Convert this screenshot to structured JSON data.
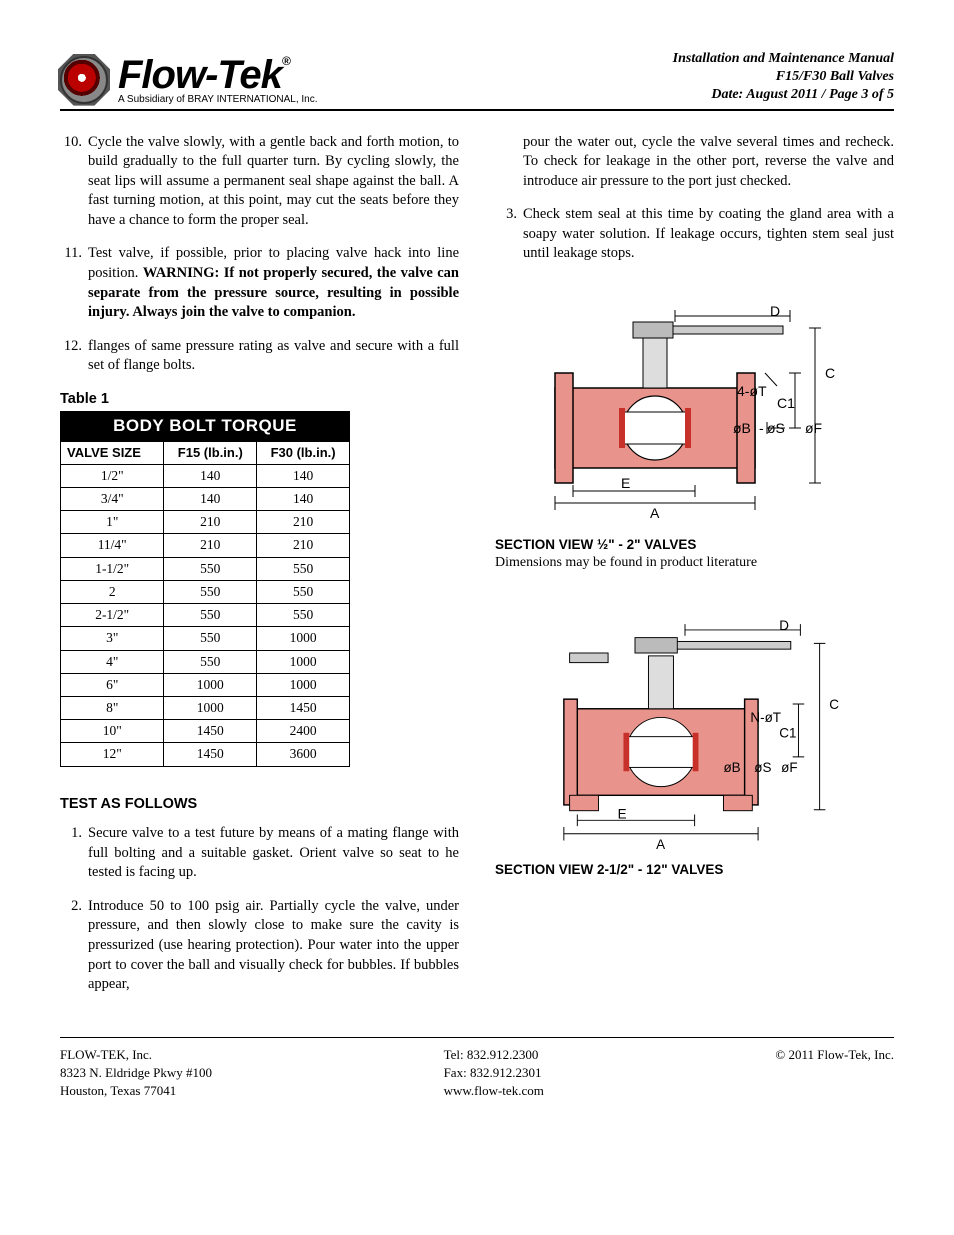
{
  "logo": {
    "name": "Flow-Tek",
    "sub": "A Subsidiary of BRAY INTERNATIONAL, Inc.",
    "reg": "®"
  },
  "header": {
    "line1": "Installation and Maintenance Manual",
    "line2": "F15/F30 Ball Valves",
    "line3": "Date: August 2011 / Page 3 of 5"
  },
  "left_items": [
    {
      "num": "10.",
      "text": "Cycle the valve slowly, with a gentle back and forth motion, to build gradually to the full quarter turn. By cycling slowly, the seat lips will assume a permanent seal shape against the ball. A fast turning motion, at this point, may cut the seats before they have a chance to form the proper seal."
    },
    {
      "num": "11.",
      "text": "Test valve, if possible, prior to placing valve hack into line position. ",
      "bold": "WARNING: If not properly secured, the valve can separate from the pressure source, resulting in possible injury. Always join the valve to companion."
    },
    {
      "num": "12.",
      "text": "flanges of same pressure rating as valve and secure with a full set of flange bolts."
    }
  ],
  "table": {
    "label": "Table 1",
    "title": "BODY BOLT TORQUE",
    "columns": [
      "VALVE SIZE",
      "F15 (lb.in.)",
      "F30 (lb.in.)"
    ],
    "rows": [
      [
        "1/2\"",
        "140",
        "140"
      ],
      [
        "3/4\"",
        "140",
        "140"
      ],
      [
        "1\"",
        "210",
        "210"
      ],
      [
        "11/4\"",
        "210",
        "210"
      ],
      [
        "1-1/2\"",
        "550",
        "550"
      ],
      [
        "2",
        "550",
        "550"
      ],
      [
        "2-1/2\"",
        "550",
        "550"
      ],
      [
        "3\"",
        "550",
        "1000"
      ],
      [
        "4\"",
        "550",
        "1000"
      ],
      [
        "6\"",
        "1000",
        "1000"
      ],
      [
        "8\"",
        "1000",
        "1450"
      ],
      [
        "10\"",
        "1450",
        "2400"
      ],
      [
        "12\"",
        "1450",
        "3600"
      ]
    ]
  },
  "test_header": "TEST AS FOLLOWS",
  "test_items": [
    {
      "num": "1.",
      "text": "Secure valve to a test future by means of a mating flange with full bolting and a suitable gasket. Orient valve so seat to he tested is facing up."
    },
    {
      "num": "2.",
      "text": "Introduce 50 to 100 psig air. Partially cycle the valve, under pressure, and then slowly close to make sure the cavity is pressurized (use hearing protection). Pour water into the upper port to cover the ball and visually check for bubbles. If bubbles appear,"
    }
  ],
  "right_items": [
    {
      "num": "",
      "text": "pour the water out, cycle the valve several times and recheck. To check for leakage in the other port, reverse the valve and introduce air pressure to the port just checked."
    },
    {
      "num": "3.",
      "text": "Check stem seal at this time by coating the gland area with a soapy water solution. If leakage occurs, tighten stem seal just until leakage stops."
    }
  ],
  "diagram1": {
    "caption": "SECTION VIEW ½\" - 2\" VALVES",
    "sub": "Dimensions may be found in product literature",
    "labels": {
      "A": "A",
      "E": "E",
      "D": "D",
      "C": "C",
      "C1": "C1",
      "T": "4-øT",
      "B": "øB",
      "S": "øS",
      "F": "øF"
    },
    "colors": {
      "body": "#e8948c",
      "outline": "#000",
      "accent": "#c8302a"
    }
  },
  "diagram2": {
    "caption": "SECTION VIEW 2-1/2\" - 12\" VALVES",
    "labels": {
      "A": "A",
      "E": "E",
      "D": "D",
      "C": "C",
      "C1": "C1",
      "T": "N-øT",
      "B": "øB",
      "S": "øS",
      "F": "øF"
    },
    "colors": {
      "body": "#e8948c",
      "outline": "#000",
      "accent": "#c8302a"
    }
  },
  "footer": {
    "col1": [
      "FLOW-TEK, Inc.",
      "8323 N. Eldridge Pkwy #100",
      "Houston, Texas 77041"
    ],
    "col2": [
      "Tel: 832.912.2300",
      "Fax: 832.912.2301",
      "www.flow-tek.com"
    ],
    "copyright": "© 2011 Flow-Tek, Inc."
  }
}
